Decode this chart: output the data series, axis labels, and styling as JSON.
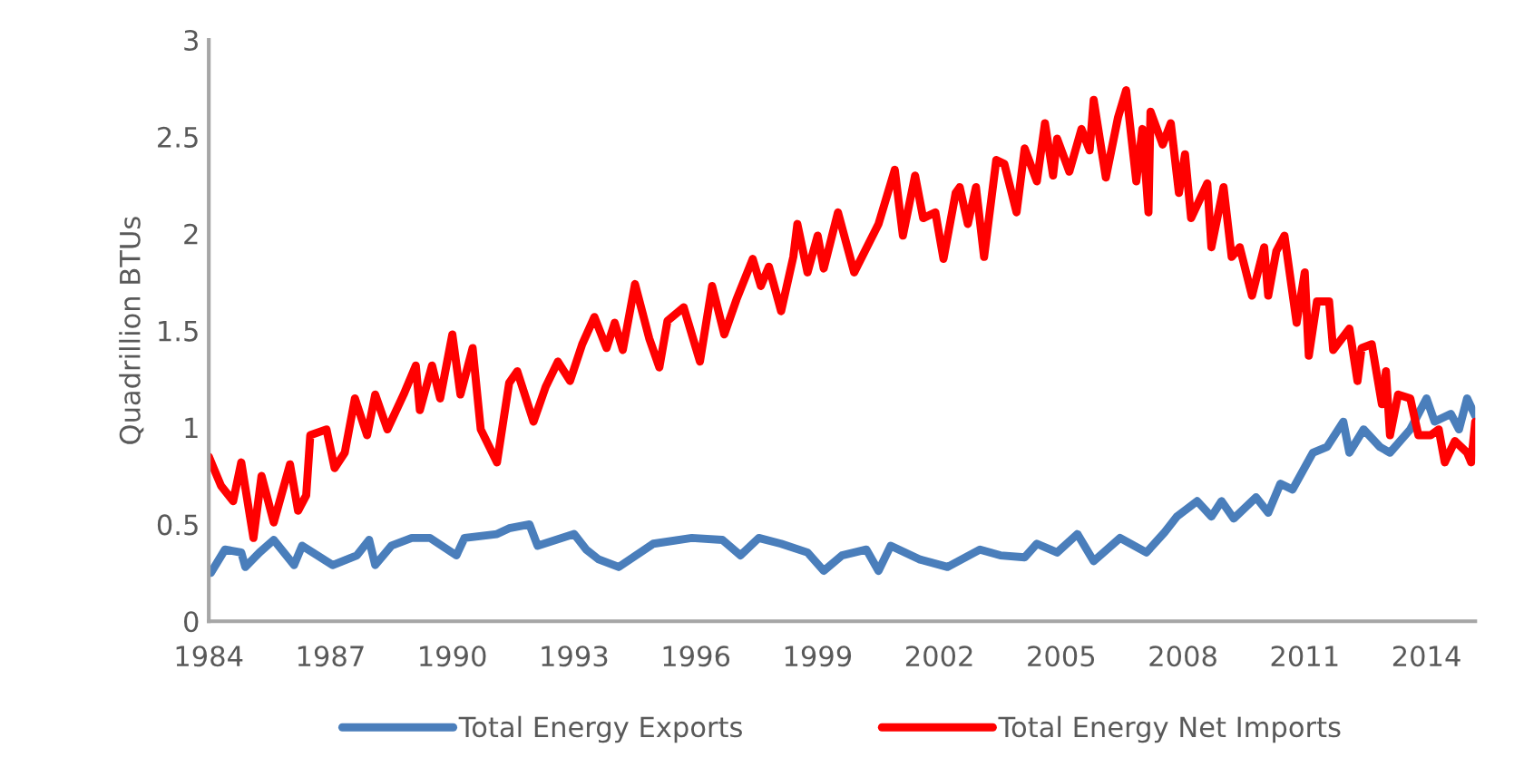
{
  "chart_data": {
    "type": "line",
    "ylabel": "Quadrillion BTUs",
    "xlim": [
      1984,
      2015.2
    ],
    "xticks": [
      1984,
      1987,
      1990,
      1993,
      1996,
      1999,
      2002,
      2005,
      2008,
      2011,
      2014
    ],
    "ylim": [
      0,
      3
    ],
    "yticks": [
      0,
      0.5,
      1,
      1.5,
      2,
      2.5,
      3
    ],
    "grid": false,
    "legend": "bottom",
    "marker": "none",
    "line_style": "solid",
    "series": [
      {
        "name": "Total Energy Exports",
        "color": "#4a7ebb",
        "x": [
          1984.05,
          1984.4,
          1984.8,
          1984.9,
          1985.25,
          1985.6,
          1986.1,
          1986.3,
          1987.05,
          1987.65,
          1987.95,
          1988.1,
          1988.5,
          1989.0,
          1989.45,
          1990.1,
          1990.3,
          1991.1,
          1991.4,
          1991.9,
          1992.1,
          1993.0,
          1993.3,
          1993.6,
          1994.1,
          1994.95,
          1995.9,
          1996.65,
          1997.1,
          1997.55,
          1998.1,
          1998.75,
          1999.15,
          1999.6,
          2000.2,
          2000.5,
          2000.8,
          2001.5,
          2002.2,
          2003.0,
          2003.5,
          2004.1,
          2004.4,
          2004.9,
          2005.4,
          2005.8,
          2006.45,
          2007.1,
          2007.55,
          2007.85,
          2008.35,
          2008.7,
          2008.95,
          2009.25,
          2009.8,
          2010.1,
          2010.4,
          2010.7,
          2011.2,
          2011.55,
          2011.95,
          2012.1,
          2012.45,
          2012.85,
          2013.1,
          2013.6,
          2014.0,
          2014.2,
          2014.6,
          2014.8,
          2015.0,
          2015.2
        ],
        "values": [
          0.25,
          0.37,
          0.355,
          0.28,
          0.355,
          0.42,
          0.29,
          0.39,
          0.29,
          0.34,
          0.42,
          0.29,
          0.39,
          0.43,
          0.43,
          0.34,
          0.43,
          0.45,
          0.48,
          0.5,
          0.39,
          0.45,
          0.37,
          0.32,
          0.28,
          0.4,
          0.43,
          0.42,
          0.34,
          0.43,
          0.4,
          0.355,
          0.26,
          0.34,
          0.37,
          0.26,
          0.39,
          0.32,
          0.28,
          0.37,
          0.34,
          0.33,
          0.4,
          0.355,
          0.45,
          0.31,
          0.43,
          0.355,
          0.46,
          0.54,
          0.62,
          0.54,
          0.62,
          0.53,
          0.64,
          0.56,
          0.71,
          0.68,
          0.87,
          0.9,
          1.03,
          0.87,
          0.99,
          0.9,
          0.87,
          0.99,
          1.15,
          1.03,
          1.07,
          0.99,
          1.15,
          1.06
        ]
      },
      {
        "name": "Total Energy Net Imports",
        "color": "#ff0000",
        "x": [
          1984.0,
          1984.3,
          1984.6,
          1984.8,
          1985.1,
          1985.3,
          1985.6,
          1986.0,
          1986.2,
          1986.4,
          1986.5,
          1986.9,
          1987.1,
          1987.35,
          1987.6,
          1987.9,
          1988.1,
          1988.4,
          1988.8,
          1989.1,
          1989.2,
          1989.5,
          1989.7,
          1990.0,
          1990.2,
          1990.5,
          1990.7,
          1991.1,
          1991.4,
          1991.6,
          1992.0,
          1992.3,
          1992.6,
          1992.9,
          1993.2,
          1993.5,
          1993.8,
          1994.0,
          1994.2,
          1994.5,
          1994.85,
          1995.1,
          1995.3,
          1995.7,
          1996.1,
          1996.4,
          1996.7,
          1997.0,
          1997.4,
          1997.6,
          1997.8,
          1998.1,
          1998.4,
          1998.5,
          1998.75,
          1999.0,
          1999.15,
          1999.5,
          1999.9,
          2000.5,
          2000.9,
          2001.1,
          2001.4,
          2001.6,
          2001.9,
          2002.1,
          2002.4,
          2002.5,
          2002.7,
          2002.9,
          2003.1,
          2003.4,
          2003.6,
          2003.9,
          2004.1,
          2004.4,
          2004.6,
          2004.8,
          2004.9,
          2005.2,
          2005.5,
          2005.7,
          2005.8,
          2006.1,
          2006.4,
          2006.6,
          2006.85,
          2007.0,
          2007.15,
          2007.2,
          2007.5,
          2007.7,
          2007.9,
          2008.05,
          2008.2,
          2008.6,
          2008.7,
          2009.0,
          2009.2,
          2009.4,
          2009.7,
          2010.0,
          2010.1,
          2010.3,
          2010.5,
          2010.8,
          2011.0,
          2011.1,
          2011.3,
          2011.6,
          2011.7,
          2012.1,
          2012.3,
          2012.4,
          2012.65,
          2012.9,
          2013.0,
          2013.1,
          2013.3,
          2013.6,
          2013.8,
          2014.1,
          2014.3,
          2014.45,
          2014.7,
          2015.0,
          2015.1,
          2015.2
        ],
        "values": [
          0.85,
          0.7,
          0.62,
          0.82,
          0.43,
          0.75,
          0.51,
          0.81,
          0.57,
          0.65,
          0.96,
          0.99,
          0.79,
          0.87,
          1.15,
          0.96,
          1.17,
          0.99,
          1.17,
          1.32,
          1.09,
          1.32,
          1.15,
          1.48,
          1.17,
          1.41,
          0.99,
          0.82,
          1.23,
          1.29,
          1.03,
          1.21,
          1.34,
          1.24,
          1.43,
          1.57,
          1.41,
          1.54,
          1.4,
          1.74,
          1.46,
          1.31,
          1.55,
          1.62,
          1.34,
          1.73,
          1.48,
          1.66,
          1.87,
          1.73,
          1.83,
          1.6,
          1.88,
          2.05,
          1.8,
          1.99,
          1.82,
          2.11,
          1.8,
          2.05,
          2.33,
          1.99,
          2.3,
          2.08,
          2.11,
          1.87,
          2.21,
          2.24,
          2.05,
          2.24,
          1.88,
          2.38,
          2.36,
          2.11,
          2.44,
          2.27,
          2.57,
          2.3,
          2.49,
          2.32,
          2.54,
          2.43,
          2.69,
          2.29,
          2.6,
          2.74,
          2.27,
          2.54,
          2.11,
          2.63,
          2.46,
          2.57,
          2.21,
          2.41,
          2.08,
          2.26,
          1.93,
          2.24,
          1.88,
          1.93,
          1.68,
          1.93,
          1.68,
          1.91,
          1.99,
          1.54,
          1.8,
          1.37,
          1.65,
          1.65,
          1.4,
          1.51,
          1.24,
          1.41,
          1.43,
          1.12,
          1.29,
          0.96,
          1.17,
          1.15,
          0.96,
          0.96,
          0.99,
          0.82,
          0.93,
          0.87,
          0.82,
          1.03
        ]
      }
    ]
  }
}
